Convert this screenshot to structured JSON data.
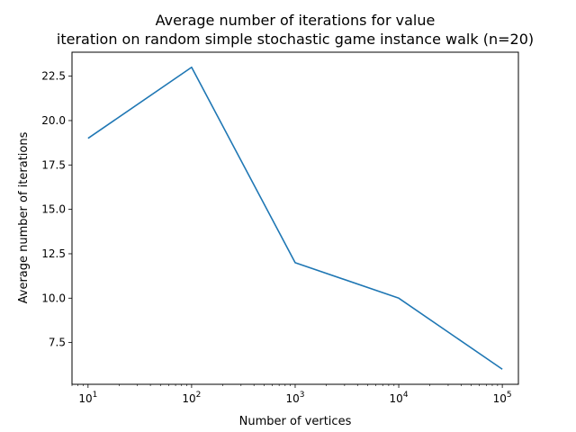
{
  "chart_data": {
    "type": "line",
    "title_line1": "Average number of iterations for value",
    "title_line2": "iteration on random simple stochastic game instance walk (n=20)",
    "xlabel": "Number of vertices",
    "ylabel": "Average number of iterations",
    "x_scale": "log",
    "x_ticks": [
      {
        "value": 10,
        "base": "10",
        "exp": "1"
      },
      {
        "value": 100,
        "base": "10",
        "exp": "2"
      },
      {
        "value": 1000,
        "base": "10",
        "exp": "3"
      },
      {
        "value": 10000,
        "base": "10",
        "exp": "4"
      },
      {
        "value": 100000,
        "base": "10",
        "exp": "5"
      }
    ],
    "y_ticks": [
      7.5,
      10.0,
      12.5,
      15.0,
      17.5,
      20.0,
      22.5
    ],
    "y_tick_labels": [
      "7.5",
      "10.0",
      "12.5",
      "15.0",
      "17.5",
      "20.0",
      "22.5"
    ],
    "xlim": [
      7.0,
      143000
    ],
    "ylim": [
      5.15,
      23.85
    ],
    "grid": false,
    "series": [
      {
        "color": "#1f77b4",
        "x": [
          10,
          100,
          1000,
          10000,
          100000
        ],
        "y": [
          19,
          23,
          12,
          10,
          6
        ]
      }
    ]
  }
}
